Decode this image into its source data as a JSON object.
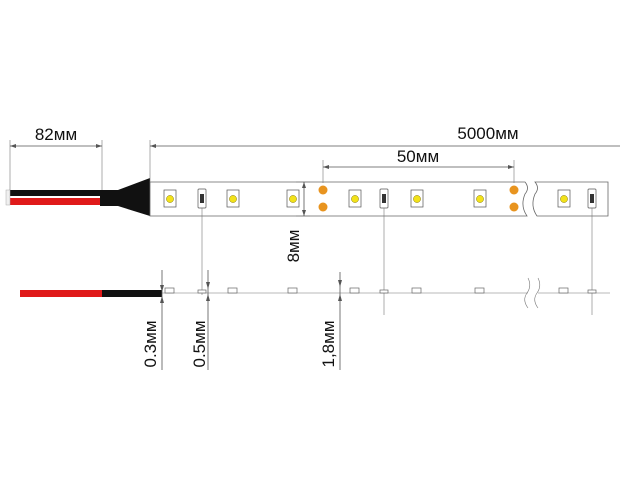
{
  "dimensions": {
    "wire_length": "82мм",
    "strip_length": "5000мм",
    "segment_length": "50мм",
    "strip_width": "8мм",
    "pcb_thickness": "0.3мм",
    "component_gap": "0.5мм",
    "led_height": "1,8мм"
  },
  "colors": {
    "wire_red": "#e01a1a",
    "wire_black": "#111111",
    "solder_pad": "#e8941f",
    "led_die": "#f2e21a"
  }
}
